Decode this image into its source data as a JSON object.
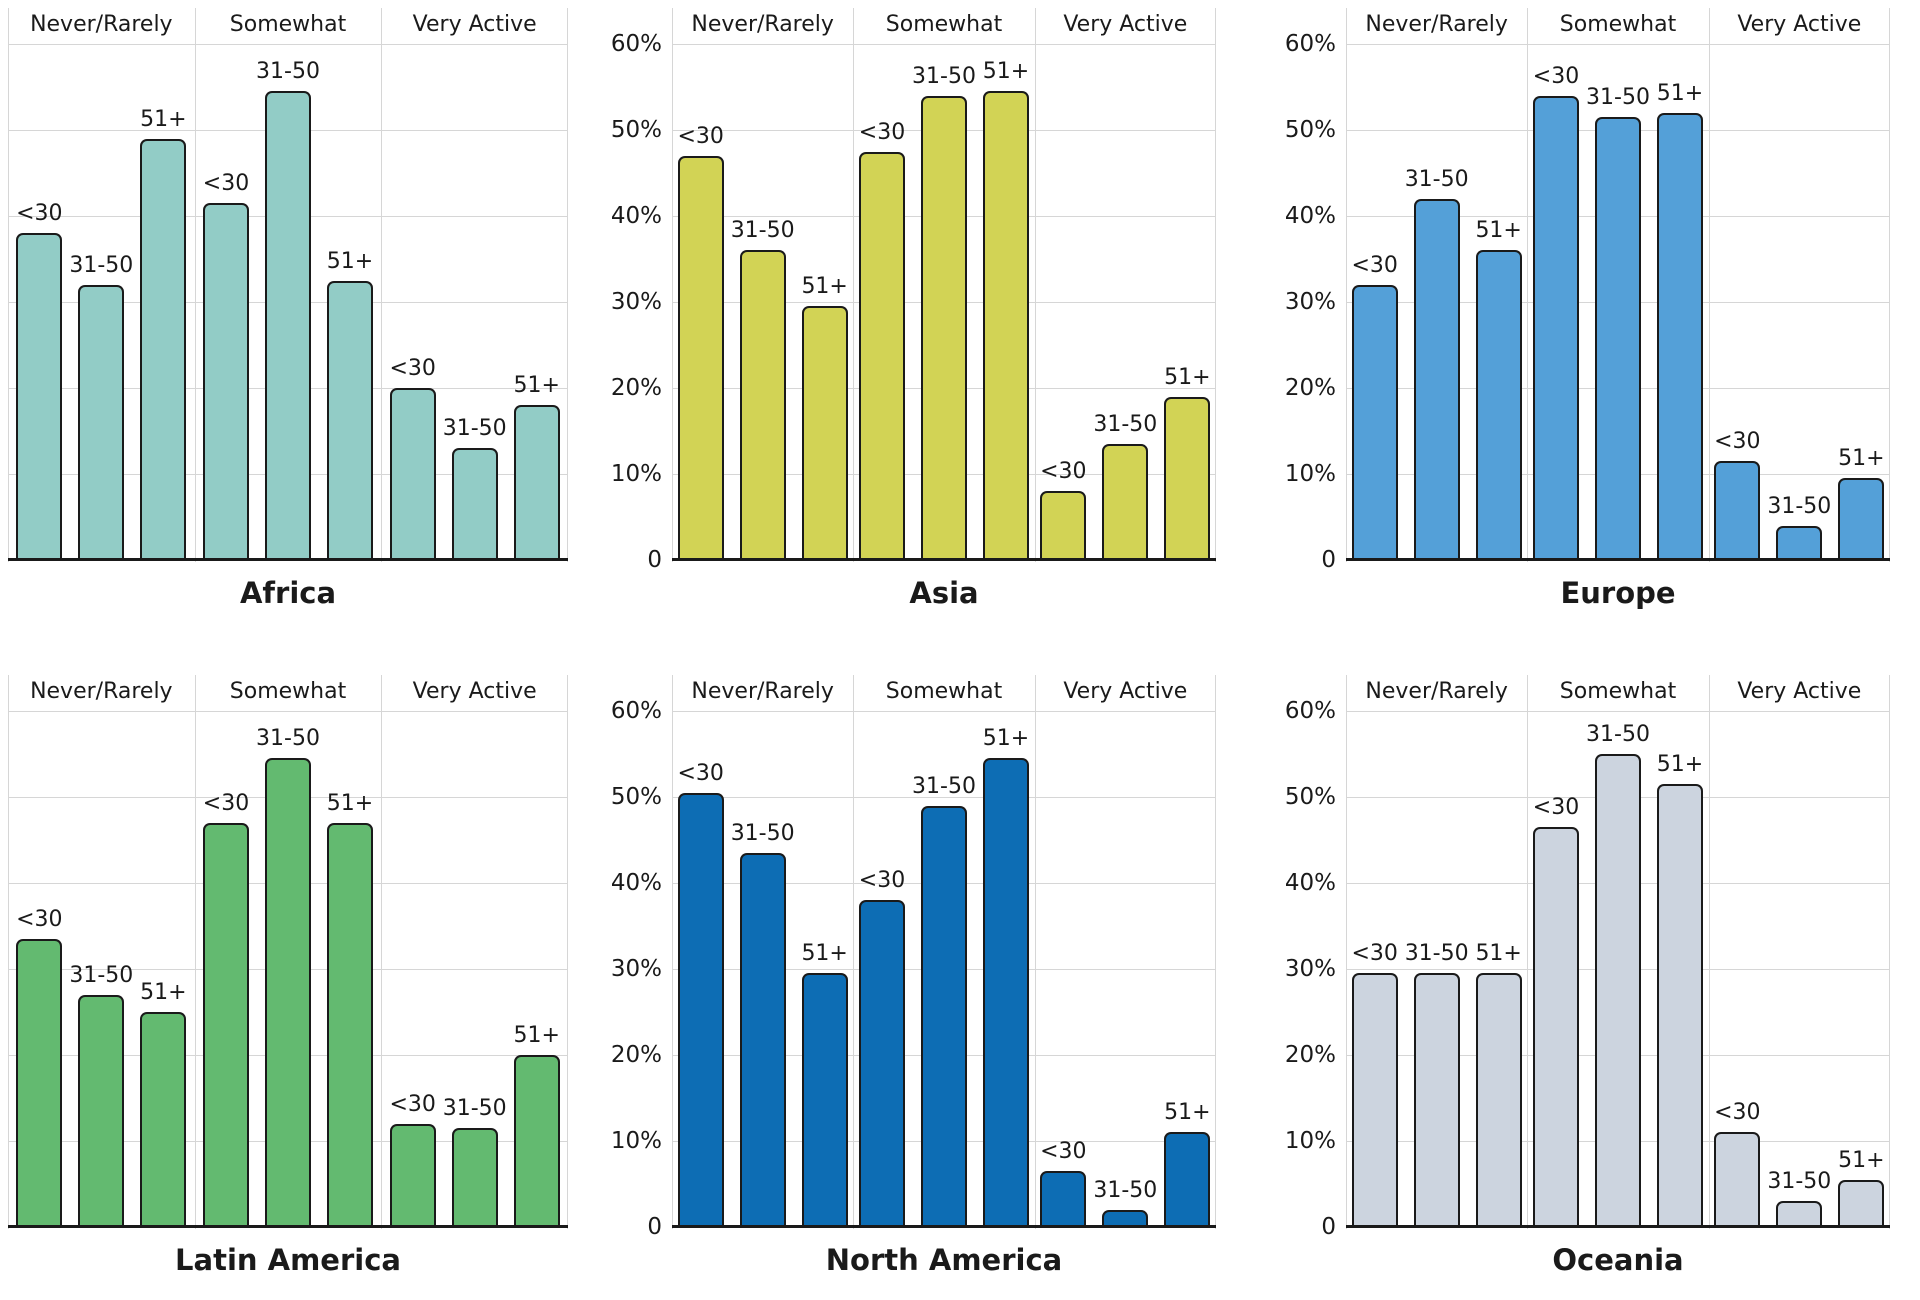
{
  "shared": {
    "category_headers": [
      "Never/Rarely",
      "Somewhat",
      "Very Active"
    ],
    "age_group_labels": [
      "<30",
      "31-50",
      "51+"
    ],
    "y_tick_labels": [
      "60%",
      "50%",
      "40%",
      "30%",
      "20%",
      "10%"
    ],
    "zero_label": "0",
    "ylim": [
      0,
      60
    ],
    "grid": true,
    "legend": "none",
    "background": "#ffffff",
    "text_color": "#1a1a1a",
    "grid_color": "#d6d6d6",
    "bar_outline_color": "#1a1a1a"
  },
  "chart_data": [
    {
      "type": "bar",
      "title": "Africa",
      "bar_color": "#92ccc6",
      "y_ticks_visible": false,
      "categories": [
        "Never/Rarely",
        "Somewhat",
        "Very Active"
      ],
      "series": [
        {
          "name": "<30",
          "values": [
            38,
            41.5,
            20
          ]
        },
        {
          "name": "31-50",
          "values": [
            32,
            54.5,
            13
          ]
        },
        {
          "name": "51+",
          "values": [
            49,
            32.5,
            18
          ]
        }
      ],
      "ylim": [
        0,
        60
      ]
    },
    {
      "type": "bar",
      "title": "Asia",
      "bar_color": "#d2d355",
      "y_ticks_visible": true,
      "categories": [
        "Never/Rarely",
        "Somewhat",
        "Very Active"
      ],
      "series": [
        {
          "name": "<30",
          "values": [
            47,
            47.5,
            8
          ]
        },
        {
          "name": "31-50",
          "values": [
            36,
            54,
            13.5
          ]
        },
        {
          "name": "51+",
          "values": [
            29.5,
            54.5,
            19
          ]
        }
      ],
      "ylim": [
        0,
        60
      ]
    },
    {
      "type": "bar",
      "title": "Europe",
      "bar_color": "#54a0d8",
      "y_ticks_visible": true,
      "categories": [
        "Never/Rarely",
        "Somewhat",
        "Very Active"
      ],
      "series": [
        {
          "name": "<30",
          "values": [
            32,
            54,
            11.5
          ]
        },
        {
          "name": "31-50",
          "values": [
            42,
            51.5,
            4
          ]
        },
        {
          "name": "51+",
          "values": [
            36,
            52,
            9.5
          ]
        }
      ],
      "ylim": [
        0,
        60
      ]
    },
    {
      "type": "bar",
      "title": "Latin America",
      "bar_color": "#63ba70",
      "y_ticks_visible": false,
      "categories": [
        "Never/Rarely",
        "Somewhat",
        "Very Active"
      ],
      "series": [
        {
          "name": "<30",
          "values": [
            33.5,
            47,
            12
          ]
        },
        {
          "name": "31-50",
          "values": [
            27,
            54.5,
            11.5
          ]
        },
        {
          "name": "51+",
          "values": [
            25,
            47,
            20
          ]
        }
      ],
      "ylim": [
        0,
        60
      ]
    },
    {
      "type": "bar",
      "title": "North America",
      "bar_color": "#0d6db4",
      "y_ticks_visible": true,
      "categories": [
        "Never/Rarely",
        "Somewhat",
        "Very Active"
      ],
      "series": [
        {
          "name": "<30",
          "values": [
            50.5,
            38,
            6.5
          ]
        },
        {
          "name": "31-50",
          "values": [
            43.5,
            49,
            2
          ]
        },
        {
          "name": "51+",
          "values": [
            29.5,
            54.5,
            11
          ]
        }
      ],
      "ylim": [
        0,
        60
      ]
    },
    {
      "type": "bar",
      "title": "Oceania",
      "bar_color": "#ccd4df",
      "y_ticks_visible": true,
      "categories": [
        "Never/Rarely",
        "Somewhat",
        "Very Active"
      ],
      "series": [
        {
          "name": "<30",
          "values": [
            29.5,
            46.5,
            11
          ]
        },
        {
          "name": "31-50",
          "values": [
            29.5,
            55,
            3
          ]
        },
        {
          "name": "51+",
          "values": [
            29.5,
            51.5,
            5.5
          ]
        }
      ],
      "ylim": [
        0,
        60
      ]
    }
  ]
}
